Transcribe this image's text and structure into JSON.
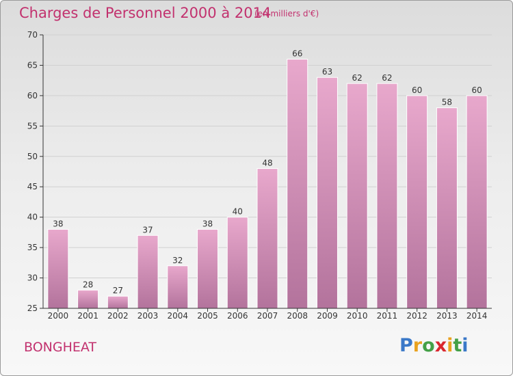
{
  "title": "Charges de Personnel 2000 à 2014",
  "subtitle": "(en milliers d'€)",
  "commune": "BONGHEAT",
  "logo_text": "Proxiti",
  "colors": {
    "title": "#c2316e",
    "bar_top": "#e8a8cc",
    "bar_bottom": "#b3739c",
    "grid": "#d0d0d0",
    "axis": "#333333"
  },
  "chart_data": {
    "type": "bar",
    "title": "Charges de Personnel 2000 à 2014",
    "subtitle": "(en milliers d'€)",
    "categories": [
      "2000",
      "2001",
      "2002",
      "2003",
      "2004",
      "2005",
      "2006",
      "2007",
      "2008",
      "2009",
      "2010",
      "2011",
      "2012",
      "2013",
      "2014"
    ],
    "values": [
      38,
      28,
      27,
      37,
      32,
      38,
      40,
      48,
      66,
      63,
      62,
      62,
      60,
      58,
      60
    ],
    "data_labels": [
      "38",
      "28",
      "27",
      "37",
      "32",
      "38",
      "40",
      "48",
      "66",
      "63",
      "62",
      "62",
      "60",
      "58",
      "60"
    ],
    "ylim": [
      25,
      70
    ],
    "yticks": [
      25,
      30,
      35,
      40,
      45,
      50,
      55,
      60,
      65,
      70
    ],
    "xlabel": "",
    "ylabel": "",
    "grid": true
  }
}
